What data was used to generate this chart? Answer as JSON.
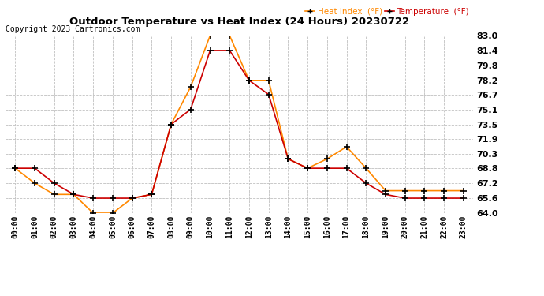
{
  "title": "Outdoor Temperature vs Heat Index (24 Hours) 20230722",
  "copyright": "Copyright 2023 Cartronics.com",
  "legend_heat_index": "Heat Index  (°F)",
  "legend_temperature": "Temperature  (°F)",
  "hours": [
    "00:00",
    "01:00",
    "02:00",
    "03:00",
    "04:00",
    "05:00",
    "06:00",
    "07:00",
    "08:00",
    "09:00",
    "10:00",
    "11:00",
    "12:00",
    "13:00",
    "14:00",
    "15:00",
    "16:00",
    "17:00",
    "18:00",
    "19:00",
    "20:00",
    "21:00",
    "22:00",
    "23:00"
  ],
  "temperature": [
    68.8,
    68.8,
    67.2,
    66.0,
    65.6,
    65.6,
    65.6,
    66.0,
    73.5,
    75.1,
    81.4,
    81.4,
    78.2,
    76.7,
    69.8,
    68.8,
    68.8,
    68.8,
    67.2,
    66.0,
    65.6,
    65.6,
    65.6,
    65.6
  ],
  "heat_index": [
    68.8,
    67.2,
    66.0,
    66.0,
    64.0,
    64.0,
    65.6,
    66.0,
    73.5,
    77.5,
    83.0,
    83.0,
    78.2,
    78.2,
    69.8,
    68.8,
    69.8,
    71.1,
    68.8,
    66.4,
    66.4,
    66.4,
    66.4,
    66.4
  ],
  "ylim": [
    64.0,
    83.0
  ],
  "yticks": [
    64.0,
    65.6,
    67.2,
    68.8,
    70.3,
    71.9,
    73.5,
    75.1,
    76.7,
    78.2,
    79.8,
    81.4,
    83.0
  ],
  "temp_color": "#cc0000",
  "heat_color": "#ff8800",
  "marker_color": "#000000",
  "bg_color": "#ffffff",
  "grid_color": "#c0c0c0",
  "title_color": "#000000",
  "copyright_color": "#000000"
}
